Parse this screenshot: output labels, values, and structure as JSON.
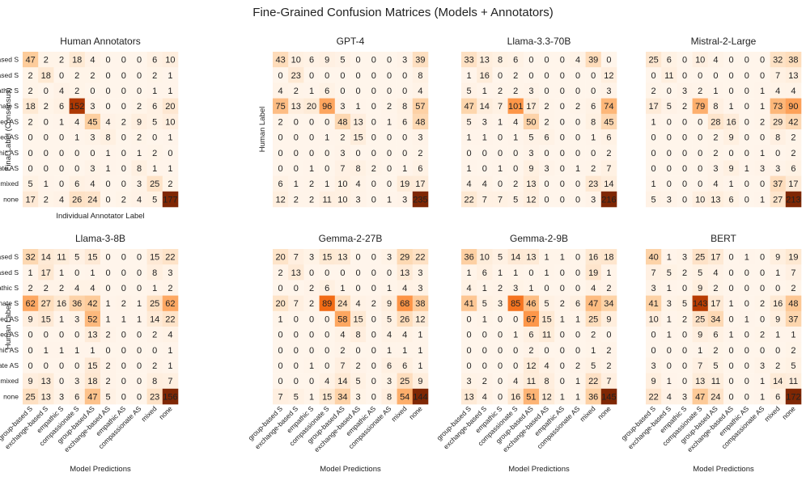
{
  "figure_title": "Fine-Grained Confusion Matrices (Models + Annotators)",
  "colors": {
    "low": "#fff5eb",
    "mid": "#fd8d3c",
    "high": "#7f2704",
    "text_dark": "#000000",
    "text_light": "#ffffff"
  },
  "chart_data": [
    {
      "type": "heatmap",
      "title": "Human Annotators",
      "ylabel": "Final Label (Consensus)",
      "xlabel": "Individual Annotator Label",
      "row_labels": [
        "group-based S",
        "exchange-based S",
        "empathic S",
        "compassionate S",
        "group-based AS",
        "exchange-based AS",
        "empathic AS",
        "compassionate AS",
        "mixed",
        "none"
      ],
      "col_labels": [],
      "vmax": 177,
      "matrix": [
        [
          47,
          2,
          2,
          18,
          4,
          0,
          0,
          0,
          6,
          10
        ],
        [
          2,
          18,
          0,
          2,
          2,
          0,
          0,
          0,
          2,
          1
        ],
        [
          2,
          0,
          4,
          2,
          0,
          0,
          0,
          0,
          1,
          1
        ],
        [
          18,
          2,
          6,
          152,
          3,
          0,
          0,
          2,
          6,
          20
        ],
        [
          2,
          0,
          1,
          4,
          45,
          4,
          2,
          9,
          5,
          10
        ],
        [
          0,
          0,
          0,
          1,
          3,
          8,
          0,
          2,
          0,
          1
        ],
        [
          0,
          0,
          0,
          0,
          0,
          1,
          0,
          1,
          2,
          0
        ],
        [
          0,
          0,
          0,
          0,
          3,
          1,
          0,
          8,
          1,
          1
        ],
        [
          5,
          1,
          0,
          6,
          4,
          0,
          0,
          3,
          25,
          2
        ],
        [
          17,
          2,
          4,
          26,
          24,
          0,
          2,
          4,
          5,
          177
        ]
      ]
    },
    {
      "type": "heatmap",
      "title": "GPT-4",
      "ylabel": "Human Label",
      "xlabel": "",
      "row_labels": [],
      "col_labels": [],
      "vmax": 235,
      "matrix": [
        [
          43,
          10,
          6,
          9,
          5,
          0,
          0,
          0,
          3,
          39
        ],
        [
          0,
          23,
          0,
          0,
          0,
          0,
          0,
          0,
          0,
          8
        ],
        [
          4,
          2,
          1,
          6,
          0,
          0,
          0,
          0,
          0,
          4
        ],
        [
          75,
          13,
          20,
          96,
          3,
          1,
          0,
          2,
          8,
          57
        ],
        [
          2,
          0,
          0,
          0,
          48,
          13,
          0,
          1,
          6,
          48
        ],
        [
          0,
          0,
          0,
          1,
          2,
          15,
          0,
          0,
          0,
          3
        ],
        [
          0,
          0,
          0,
          0,
          3,
          0,
          0,
          0,
          0,
          2
        ],
        [
          0,
          0,
          1,
          0,
          7,
          8,
          2,
          0,
          1,
          6
        ],
        [
          6,
          1,
          2,
          1,
          10,
          4,
          0,
          0,
          19,
          17
        ],
        [
          12,
          2,
          2,
          11,
          10,
          3,
          0,
          1,
          3,
          235
        ]
      ]
    },
    {
      "type": "heatmap",
      "title": "Llama-3.3-70B",
      "ylabel": "",
      "xlabel": "",
      "row_labels": [],
      "col_labels": [],
      "vmax": 216,
      "matrix": [
        [
          33,
          13,
          8,
          6,
          0,
          0,
          0,
          4,
          39,
          0
        ],
        [
          1,
          16,
          0,
          2,
          0,
          0,
          0,
          0,
          0,
          12
        ],
        [
          5,
          1,
          2,
          2,
          3,
          0,
          0,
          0,
          0,
          3
        ],
        [
          47,
          14,
          7,
          101,
          17,
          2,
          0,
          2,
          6,
          74
        ],
        [
          5,
          3,
          1,
          4,
          50,
          2,
          0,
          0,
          8,
          45
        ],
        [
          1,
          1,
          0,
          1,
          5,
          6,
          0,
          0,
          1,
          6
        ],
        [
          0,
          0,
          0,
          0,
          3,
          0,
          0,
          0,
          0,
          2
        ],
        [
          1,
          0,
          1,
          0,
          9,
          3,
          0,
          1,
          2,
          7
        ],
        [
          4,
          4,
          0,
          2,
          13,
          0,
          0,
          0,
          23,
          14
        ],
        [
          22,
          7,
          7,
          5,
          12,
          0,
          0,
          0,
          3,
          216
        ]
      ]
    },
    {
      "type": "heatmap",
      "title": "Mistral-2-Large",
      "ylabel": "",
      "xlabel": "",
      "row_labels": [],
      "col_labels": [],
      "vmax": 213,
      "matrix": [
        [
          25,
          6,
          0,
          10,
          4,
          0,
          0,
          0,
          32,
          38
        ],
        [
          0,
          11,
          0,
          0,
          0,
          0,
          0,
          0,
          7,
          13
        ],
        [
          2,
          0,
          3,
          2,
          1,
          0,
          0,
          1,
          4,
          4
        ],
        [
          17,
          5,
          2,
          79,
          8,
          1,
          0,
          1,
          73,
          90
        ],
        [
          1,
          0,
          0,
          0,
          28,
          16,
          0,
          2,
          29,
          42
        ],
        [
          0,
          0,
          0,
          0,
          2,
          9,
          0,
          0,
          8,
          2
        ],
        [
          0,
          0,
          0,
          0,
          2,
          0,
          0,
          1,
          0,
          2
        ],
        [
          0,
          0,
          0,
          0,
          3,
          9,
          1,
          3,
          3,
          6
        ],
        [
          1,
          0,
          0,
          0,
          4,
          1,
          0,
          0,
          37,
          17
        ],
        [
          5,
          3,
          0,
          10,
          13,
          6,
          0,
          1,
          27,
          213
        ]
      ]
    },
    {
      "type": "heatmap",
      "title": "Llama-3-8B",
      "ylabel": "Human Label",
      "xlabel": "Model Predictions",
      "row_labels": [
        "group-based S",
        "exchange-based S",
        "empathic S",
        "compassionate S",
        "group-based AS",
        "exchange-based AS",
        "empathic AS",
        "compassionate AS",
        "mixed",
        "none"
      ],
      "col_labels": [
        "group-based S",
        "exchange-based S",
        "empathic S",
        "compassionate S",
        "group-based AS",
        "exchange-based AS",
        "empathic AS",
        "compassionate AS",
        "mixed",
        "none"
      ],
      "vmax": 156,
      "matrix": [
        [
          32,
          14,
          11,
          5,
          15,
          0,
          0,
          0,
          15,
          22
        ],
        [
          1,
          17,
          1,
          0,
          1,
          0,
          0,
          0,
          8,
          3
        ],
        [
          2,
          2,
          2,
          4,
          4,
          0,
          0,
          0,
          1,
          2
        ],
        [
          62,
          27,
          16,
          36,
          42,
          1,
          2,
          1,
          25,
          62
        ],
        [
          9,
          15,
          1,
          3,
          52,
          1,
          1,
          1,
          14,
          22
        ],
        [
          0,
          0,
          0,
          0,
          13,
          2,
          0,
          0,
          2,
          4
        ],
        [
          0,
          1,
          1,
          1,
          1,
          0,
          0,
          0,
          0,
          1
        ],
        [
          0,
          0,
          0,
          0,
          15,
          2,
          0,
          0,
          2,
          1
        ],
        [
          9,
          13,
          0,
          3,
          18,
          2,
          0,
          0,
          8,
          7
        ],
        [
          25,
          13,
          3,
          6,
          47,
          5,
          0,
          0,
          23,
          156
        ]
      ]
    },
    {
      "type": "heatmap",
      "title": "Gemma-2-27B",
      "ylabel": "",
      "xlabel": "Model Predictions",
      "row_labels": [],
      "col_labels": [
        "group-based S",
        "exchange-based S",
        "empathic S",
        "compassionate S",
        "group-based AS",
        "exchange-based AS",
        "empathic AS",
        "compassionate AS",
        "mixed",
        "none"
      ],
      "vmax": 144,
      "matrix": [
        [
          20,
          7,
          3,
          15,
          13,
          0,
          0,
          3,
          29,
          22
        ],
        [
          2,
          13,
          0,
          0,
          0,
          0,
          0,
          0,
          13,
          3
        ],
        [
          0,
          0,
          2,
          6,
          1,
          0,
          0,
          1,
          4,
          3
        ],
        [
          20,
          7,
          2,
          89,
          24,
          4,
          2,
          9,
          68,
          38
        ],
        [
          1,
          0,
          0,
          0,
          58,
          15,
          0,
          5,
          26,
          12
        ],
        [
          0,
          0,
          0,
          0,
          4,
          8,
          0,
          4,
          4,
          1
        ],
        [
          0,
          0,
          0,
          0,
          2,
          0,
          0,
          1,
          1,
          1
        ],
        [
          0,
          0,
          1,
          0,
          7,
          2,
          0,
          6,
          6,
          1
        ],
        [
          0,
          0,
          0,
          4,
          14,
          5,
          0,
          3,
          25,
          9
        ],
        [
          7,
          5,
          1,
          15,
          34,
          3,
          0,
          8,
          54,
          144
        ]
      ]
    },
    {
      "type": "heatmap",
      "title": "Gemma-2-9B",
      "ylabel": "",
      "xlabel": "Model Predictions",
      "row_labels": [],
      "col_labels": [
        "group-based S",
        "exchange-based S",
        "empathic S",
        "compassionate S",
        "group-based AS",
        "exchange-based AS",
        "empathic AS",
        "compassionate AS",
        "mixed",
        "none"
      ],
      "vmax": 145,
      "matrix": [
        [
          36,
          10,
          5,
          14,
          13,
          1,
          1,
          0,
          16,
          18
        ],
        [
          1,
          6,
          1,
          1,
          0,
          1,
          0,
          0,
          19,
          1
        ],
        [
          4,
          1,
          2,
          3,
          1,
          0,
          0,
          0,
          4,
          2
        ],
        [
          41,
          5,
          3,
          85,
          46,
          5,
          2,
          6,
          47,
          34
        ],
        [
          0,
          1,
          0,
          0,
          67,
          15,
          1,
          1,
          25,
          9
        ],
        [
          0,
          0,
          0,
          1,
          6,
          11,
          0,
          0,
          2,
          0
        ],
        [
          0,
          0,
          0,
          0,
          2,
          0,
          0,
          0,
          1,
          2
        ],
        [
          0,
          0,
          0,
          0,
          12,
          4,
          0,
          2,
          5,
          2
        ],
        [
          3,
          2,
          0,
          4,
          11,
          8,
          0,
          1,
          22,
          7
        ],
        [
          13,
          4,
          0,
          16,
          51,
          12,
          1,
          1,
          36,
          145
        ]
      ]
    },
    {
      "type": "heatmap",
      "title": "BERT",
      "ylabel": "",
      "xlabel": "Model Predictions",
      "row_labels": [],
      "col_labels": [
        "group-based S",
        "exchange-based S",
        "empathic S",
        "compassionate S",
        "group-based AS",
        "exchange-based AS",
        "empathic AS",
        "compassionate AS",
        "mixed",
        "none"
      ],
      "vmax": 172,
      "matrix": [
        [
          40,
          1,
          3,
          25,
          17,
          0,
          1,
          0,
          9,
          19
        ],
        [
          7,
          5,
          2,
          5,
          4,
          0,
          0,
          0,
          1,
          7
        ],
        [
          3,
          1,
          0,
          9,
          2,
          0,
          0,
          0,
          0,
          2
        ],
        [
          41,
          3,
          5,
          143,
          17,
          1,
          0,
          2,
          16,
          48
        ],
        [
          10,
          1,
          2,
          25,
          34,
          0,
          1,
          0,
          9,
          37
        ],
        [
          0,
          1,
          0,
          9,
          6,
          1,
          0,
          2,
          1,
          1
        ],
        [
          0,
          0,
          0,
          1,
          2,
          0,
          0,
          0,
          0,
          2
        ],
        [
          3,
          0,
          0,
          7,
          5,
          0,
          0,
          3,
          2,
          5
        ],
        [
          9,
          1,
          0,
          13,
          11,
          0,
          0,
          1,
          14,
          11
        ],
        [
          22,
          4,
          3,
          47,
          24,
          0,
          0,
          1,
          6,
          172
        ]
      ]
    }
  ]
}
